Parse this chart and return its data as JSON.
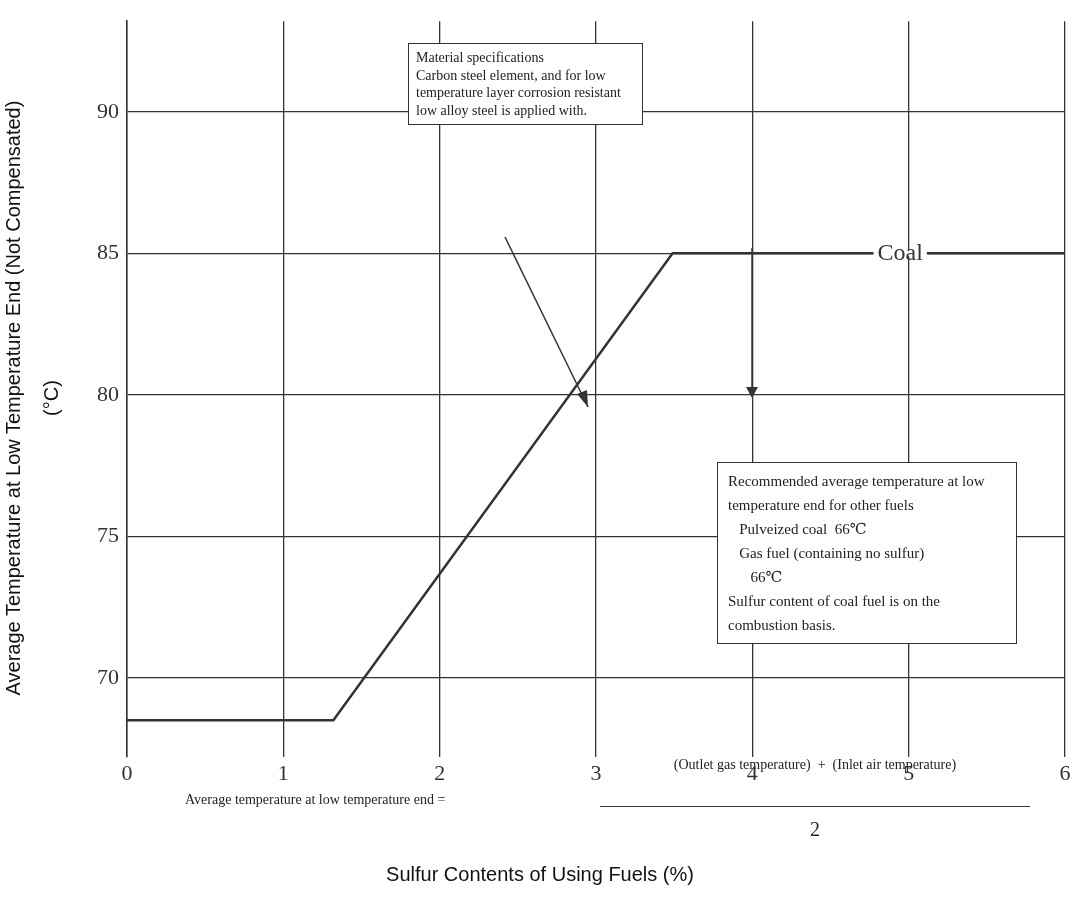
{
  "chart_data": {
    "type": "line",
    "xlabel": "Sulfur Contents of Using Fuels (%)",
    "ylabel": "Average Temperature at Low Temperature End (Not Compensated) (°C)",
    "series": [
      {
        "name": "Coal",
        "color": "#333333",
        "x": [
          0,
          1.32,
          3.49,
          6
        ],
        "values": [
          68.5,
          68.5,
          85,
          85
        ]
      }
    ],
    "xlim": [
      0,
      6
    ],
    "ylim": [
      67.2,
      93.2
    ],
    "xticks": [
      0,
      1,
      2,
      3,
      4,
      5,
      6
    ],
    "yticks": [
      70,
      75,
      80,
      85,
      90
    ],
    "grid": true,
    "legend": false,
    "marker": "none",
    "line_style": "solid",
    "annotations": [
      "Material specifications\nCarbon steel element, and for low temperature layer corrosion resistant low alloy steel is applied with.",
      "Recommended average temperature at low temperature end for other fuels\n   Pulveized coal  66℃\n   Gas fuel (containing no sulfur)\n      66℃\nSulfur content of coal fuel is on the combustion basis.",
      "Average temperature at low temperature end =",
      "(Outlet gas temperature)  +  (Inlet air temperature)",
      "2"
    ]
  }
}
